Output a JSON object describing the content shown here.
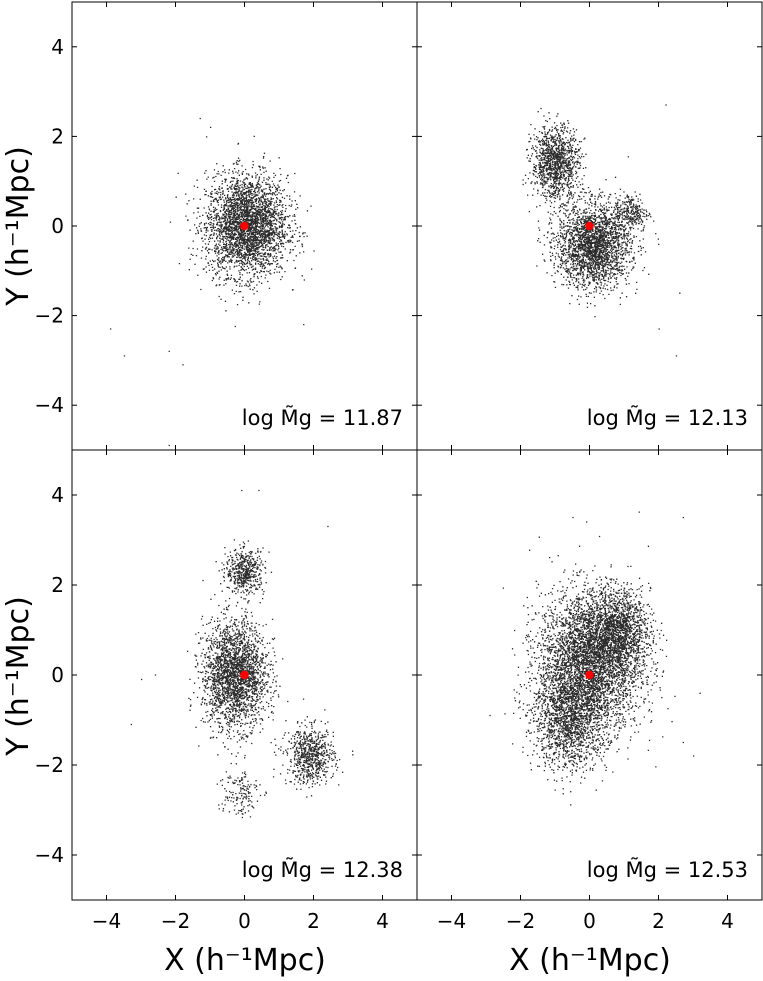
{
  "chart_data": {
    "type": "scatter",
    "layout": "2x2 shared axes",
    "xlabel": "X (h⁻¹Mpc)",
    "ylabel": "Y (h⁻¹Mpc)",
    "xlim": [
      -5,
      5
    ],
    "ylim": [
      -5,
      5
    ],
    "xticks": [
      -4,
      -2,
      0,
      2,
      4
    ],
    "yticks": [
      -4,
      -2,
      0,
      2,
      4
    ],
    "grid": false,
    "colors": {
      "points": "#2b2b2b",
      "center": "#ff0000"
    },
    "panels": [
      {
        "label": "log M̃g = 11.87",
        "center": [
          0,
          0
        ],
        "clumps": [
          {
            "cx": 0.05,
            "cy": 0.0,
            "sx": 0.95,
            "sy": 0.9,
            "n": 3200
          }
        ],
        "outliers": [
          [
            -1.3,
            2.4
          ],
          [
            -1.0,
            2.2
          ],
          [
            1.7,
            -2.2
          ],
          [
            -3.9,
            -2.3
          ],
          [
            -3.5,
            -2.9
          ],
          [
            -2.2,
            -2.8
          ],
          [
            -1.8,
            -3.1
          ],
          [
            -2.2,
            -4.9
          ]
        ]
      },
      {
        "label": "log M̃g = 12.13",
        "center": [
          0,
          0
        ],
        "clumps": [
          {
            "cx": -1.0,
            "cy": 1.4,
            "sx": 0.55,
            "sy": 0.65,
            "n": 1200
          },
          {
            "cx": 0.1,
            "cy": -0.45,
            "sx": 0.85,
            "sy": 0.75,
            "n": 2400
          },
          {
            "cx": 1.2,
            "cy": 0.3,
            "sx": 0.4,
            "sy": 0.35,
            "n": 250
          }
        ],
        "outliers": [
          [
            2.2,
            2.7
          ],
          [
            2.5,
            -2.9
          ],
          [
            2.6,
            -1.5
          ],
          [
            2.0,
            -2.3
          ]
        ]
      },
      {
        "label": "log M̃g = 12.38",
        "center": [
          0,
          0
        ],
        "clumps": [
          {
            "cx": -0.3,
            "cy": 0.0,
            "sx": 0.75,
            "sy": 0.95,
            "n": 2400
          },
          {
            "cx": 0.0,
            "cy": 2.3,
            "sx": 0.45,
            "sy": 0.4,
            "n": 500
          },
          {
            "cx": 1.9,
            "cy": -1.8,
            "sx": 0.55,
            "sy": 0.5,
            "n": 700
          },
          {
            "cx": -0.2,
            "cy": -2.6,
            "sx": 0.5,
            "sy": 0.45,
            "n": 150
          }
        ],
        "outliers": [
          [
            -0.1,
            4.1
          ],
          [
            0.4,
            4.1
          ],
          [
            2.4,
            3.3
          ],
          [
            -3.3,
            -1.1
          ],
          [
            -2.6,
            0.0
          ],
          [
            -3.0,
            -0.1
          ]
        ]
      },
      {
        "label": "log M̃g = 12.53",
        "center": [
          0,
          0
        ],
        "clumps": [
          {
            "cx": 0.0,
            "cy": 0.3,
            "sx": 1.2,
            "sy": 1.25,
            "n": 4000
          },
          {
            "cx": -0.6,
            "cy": -1.0,
            "sx": 0.85,
            "sy": 0.9,
            "n": 1500
          },
          {
            "cx": 0.8,
            "cy": 1.0,
            "sx": 0.75,
            "sy": 0.7,
            "n": 1200
          }
        ],
        "outliers": [
          [
            -0.5,
            3.5
          ],
          [
            2.7,
            3.5
          ],
          [
            -0.1,
            3.4
          ],
          [
            3.0,
            -1.8
          ],
          [
            -2.9,
            -0.9
          ],
          [
            2.7,
            -1.5
          ]
        ]
      }
    ]
  }
}
